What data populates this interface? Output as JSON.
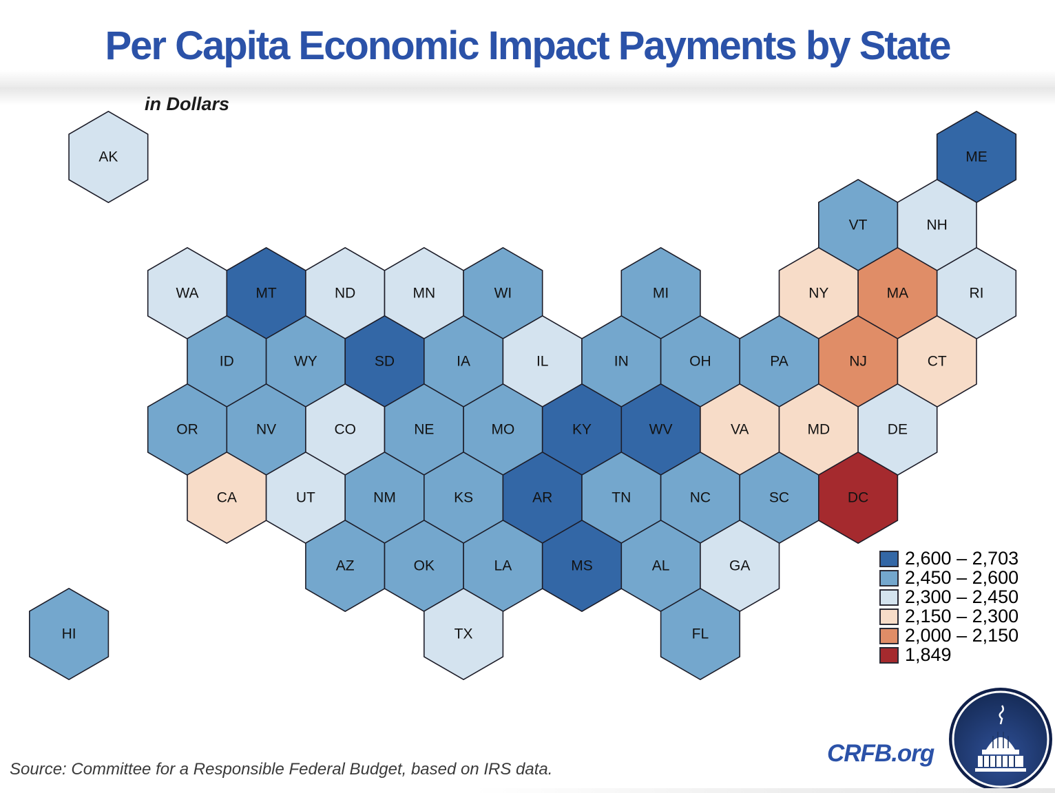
{
  "title": "Per Capita Economic Impact Payments by State",
  "subtitle": "in Dollars",
  "source": "Source: Committee for a Responsible Federal Budget, based on IRS data.",
  "branding": {
    "site": "CRFB.org",
    "logo_icon": "capitol-dome-icon"
  },
  "colors": {
    "accent_blue": "#2b52a8",
    "hex_border": "#1c1c28",
    "text_dark": "#121212",
    "source_gray": "#3a3a3a",
    "logo_navy": "#10204a"
  },
  "chart_data": {
    "type": "heatmap",
    "subtype": "hex-cartogram-usa",
    "title": "Per Capita Economic Impact Payments by State",
    "units_label": "in Dollars",
    "legend_position": "bottom-right",
    "bins": [
      {
        "label": "2,600 – 2,703",
        "color": "#3367a6"
      },
      {
        "label": "2,450 – 2,600",
        "color": "#74a7cd"
      },
      {
        "label": "2,300 – 2,450",
        "color": "#d4e3ef"
      },
      {
        "label": "2,150 – 2,300",
        "color": "#f7dcc8"
      },
      {
        "label": "2,000 – 2,150",
        "color": "#e08d67"
      },
      {
        "label": "1,849",
        "color": "#a52a2e"
      }
    ],
    "states": [
      {
        "abbr": "AK",
        "row": 0,
        "col": -1,
        "bin": 2
      },
      {
        "abbr": "ME",
        "row": 0,
        "col": 10,
        "bin": 0
      },
      {
        "abbr": "VT",
        "row": 1,
        "col": 8,
        "bin": 1
      },
      {
        "abbr": "NH",
        "row": 1,
        "col": 9,
        "bin": 2
      },
      {
        "abbr": "WA",
        "row": 2,
        "col": 0,
        "bin": 2
      },
      {
        "abbr": "MT",
        "row": 2,
        "col": 1,
        "bin": 0
      },
      {
        "abbr": "ND",
        "row": 2,
        "col": 2,
        "bin": 2
      },
      {
        "abbr": "MN",
        "row": 2,
        "col": 3,
        "bin": 2
      },
      {
        "abbr": "WI",
        "row": 2,
        "col": 4,
        "bin": 1
      },
      {
        "abbr": "MI",
        "row": 2,
        "col": 6,
        "bin": 1
      },
      {
        "abbr": "NY",
        "row": 2,
        "col": 8,
        "bin": 3
      },
      {
        "abbr": "MA",
        "row": 2,
        "col": 9,
        "bin": 4
      },
      {
        "abbr": "RI",
        "row": 2,
        "col": 10,
        "bin": 2
      },
      {
        "abbr": "ID",
        "row": 3,
        "col": 0,
        "bin": 1
      },
      {
        "abbr": "WY",
        "row": 3,
        "col": 1,
        "bin": 1
      },
      {
        "abbr": "SD",
        "row": 3,
        "col": 2,
        "bin": 0
      },
      {
        "abbr": "IA",
        "row": 3,
        "col": 3,
        "bin": 1
      },
      {
        "abbr": "IL",
        "row": 3,
        "col": 4,
        "bin": 2
      },
      {
        "abbr": "IN",
        "row": 3,
        "col": 5,
        "bin": 1
      },
      {
        "abbr": "OH",
        "row": 3,
        "col": 6,
        "bin": 1
      },
      {
        "abbr": "PA",
        "row": 3,
        "col": 7,
        "bin": 1
      },
      {
        "abbr": "NJ",
        "row": 3,
        "col": 8,
        "bin": 4
      },
      {
        "abbr": "CT",
        "row": 3,
        "col": 9,
        "bin": 3
      },
      {
        "abbr": "OR",
        "row": 4,
        "col": 0,
        "bin": 1
      },
      {
        "abbr": "NV",
        "row": 4,
        "col": 1,
        "bin": 1
      },
      {
        "abbr": "CO",
        "row": 4,
        "col": 2,
        "bin": 2
      },
      {
        "abbr": "NE",
        "row": 4,
        "col": 3,
        "bin": 1
      },
      {
        "abbr": "MO",
        "row": 4,
        "col": 4,
        "bin": 1
      },
      {
        "abbr": "KY",
        "row": 4,
        "col": 5,
        "bin": 0
      },
      {
        "abbr": "WV",
        "row": 4,
        "col": 6,
        "bin": 0
      },
      {
        "abbr": "VA",
        "row": 4,
        "col": 7,
        "bin": 3
      },
      {
        "abbr": "MD",
        "row": 4,
        "col": 8,
        "bin": 3
      },
      {
        "abbr": "DE",
        "row": 4,
        "col": 9,
        "bin": 2
      },
      {
        "abbr": "CA",
        "row": 5,
        "col": 0,
        "bin": 3
      },
      {
        "abbr": "UT",
        "row": 5,
        "col": 1,
        "bin": 2
      },
      {
        "abbr": "NM",
        "row": 5,
        "col": 2,
        "bin": 1
      },
      {
        "abbr": "KS",
        "row": 5,
        "col": 3,
        "bin": 1
      },
      {
        "abbr": "AR",
        "row": 5,
        "col": 4,
        "bin": 0
      },
      {
        "abbr": "TN",
        "row": 5,
        "col": 5,
        "bin": 1
      },
      {
        "abbr": "NC",
        "row": 5,
        "col": 6,
        "bin": 1
      },
      {
        "abbr": "SC",
        "row": 5,
        "col": 7,
        "bin": 1
      },
      {
        "abbr": "DC",
        "row": 5,
        "col": 8,
        "bin": 5
      },
      {
        "abbr": "AZ",
        "row": 6,
        "col": 2,
        "bin": 1
      },
      {
        "abbr": "OK",
        "row": 6,
        "col": 3,
        "bin": 1
      },
      {
        "abbr": "LA",
        "row": 6,
        "col": 4,
        "bin": 1
      },
      {
        "abbr": "MS",
        "row": 6,
        "col": 5,
        "bin": 0
      },
      {
        "abbr": "AL",
        "row": 6,
        "col": 6,
        "bin": 1
      },
      {
        "abbr": "GA",
        "row": 6,
        "col": 7,
        "bin": 2
      },
      {
        "abbr": "TX",
        "row": 7,
        "col": 3,
        "bin": 2
      },
      {
        "abbr": "FL",
        "row": 7,
        "col": 6,
        "bin": 1
      },
      {
        "abbr": "HI",
        "row": 7,
        "col": -2,
        "bin": 1
      }
    ]
  }
}
